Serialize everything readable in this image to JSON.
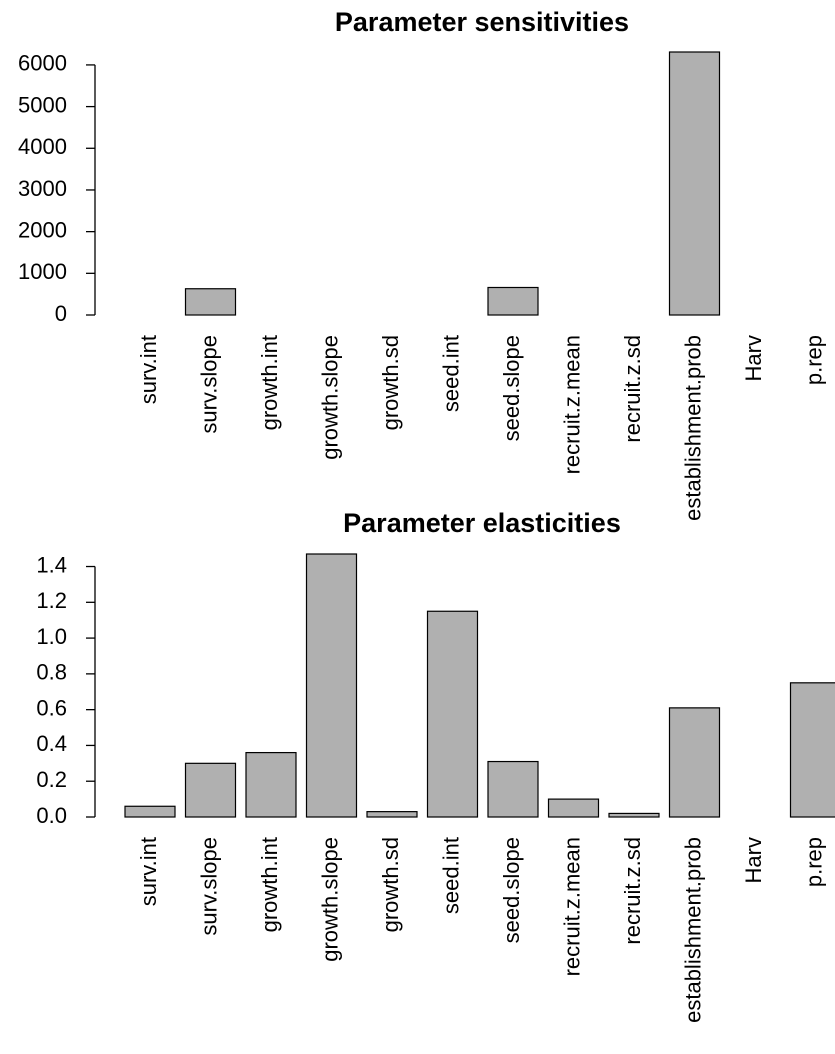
{
  "chart_data": [
    {
      "type": "bar",
      "title": "Parameter sensitivities",
      "categories": [
        "surv.int",
        "surv.slope",
        "growth.int",
        "growth.slope",
        "growth.sd",
        "seed.int",
        "seed.slope",
        "recruit.z.mean",
        "recruit.z.sd",
        "establishment.prob",
        "Harv",
        "p.rep"
      ],
      "values": [
        0,
        630,
        0,
        0,
        0,
        0,
        660,
        0,
        0,
        6310,
        0,
        0
      ],
      "color": "#b0b0b0",
      "ylim": [
        0,
        6310
      ],
      "yticks": [
        0,
        1000,
        2000,
        3000,
        4000,
        5000,
        6000
      ],
      "grid": false
    },
    {
      "type": "bar",
      "title": "Parameter elasticities",
      "categories": [
        "surv.int",
        "surv.slope",
        "growth.int",
        "growth.slope",
        "growth.sd",
        "seed.int",
        "seed.slope",
        "recruit.z.mean",
        "recruit.z.sd",
        "establishment.prob",
        "Harv",
        "p.rep"
      ],
      "values": [
        0.06,
        0.3,
        0.36,
        1.47,
        0.03,
        1.15,
        0.31,
        0.1,
        0.02,
        0.61,
        0,
        0.75
      ],
      "color": "#b0b0b0",
      "ylim": [
        0,
        1.47
      ],
      "yticks": [
        {
          "value": 0,
          "label": "0.0"
        },
        {
          "value": 0.2,
          "label": "0.2"
        },
        {
          "value": 0.4,
          "label": "0.4"
        },
        {
          "value": 0.6,
          "label": "0.6"
        },
        {
          "value": 0.8,
          "label": "0.8"
        },
        {
          "value": 1,
          "label": "1.0"
        },
        {
          "value": 1.2,
          "label": "1.2"
        },
        {
          "value": 1.4,
          "label": "1.4"
        }
      ],
      "grid": false
    }
  ]
}
